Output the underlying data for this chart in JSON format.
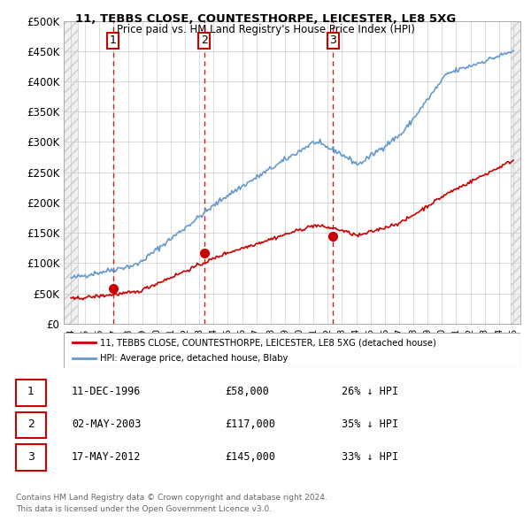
{
  "title1": "11, TEBBS CLOSE, COUNTESTHORPE, LEICESTER, LE8 5XG",
  "title2": "Price paid vs. HM Land Registry's House Price Index (HPI)",
  "xlabel": "",
  "ylabel": "",
  "ylim": [
    0,
    500000
  ],
  "yticks": [
    0,
    50000,
    100000,
    150000,
    200000,
    250000,
    300000,
    350000,
    400000,
    450000,
    500000
  ],
  "ytick_labels": [
    "£0",
    "£50K",
    "£100K",
    "£150K",
    "£200K",
    "£250K",
    "£300K",
    "£350K",
    "£400K",
    "£450K",
    "£500K"
  ],
  "hpi_color": "#6699cc",
  "price_color": "#cc0000",
  "vline_color": "#cc0000",
  "sale_points": [
    {
      "year": 1996.95,
      "price": 58000,
      "label": "1"
    },
    {
      "year": 2003.34,
      "price": 117000,
      "label": "2"
    },
    {
      "year": 2012.38,
      "price": 145000,
      "label": "3"
    }
  ],
  "legend_line1": "11, TEBBS CLOSE, COUNTESTHORPE, LEICESTER, LE8 5XG (detached house)",
  "legend_line2": "HPI: Average price, detached house, Blaby",
  "table_rows": [
    {
      "num": "1",
      "date": "11-DEC-1996",
      "price": "£58,000",
      "hpi": "26% ↓ HPI"
    },
    {
      "num": "2",
      "date": "02-MAY-2003",
      "price": "£117,000",
      "hpi": "35% ↓ HPI"
    },
    {
      "num": "3",
      "date": "17-MAY-2012",
      "price": "£145,000",
      "hpi": "33% ↓ HPI"
    }
  ],
  "footnote1": "Contains HM Land Registry data © Crown copyright and database right 2024.",
  "footnote2": "This data is licensed under the Open Government Licence v3.0.",
  "xlim_start": 1993.5,
  "xlim_end": 2025.5,
  "hatch_color": "#dddddd",
  "background_color": "#ffffff"
}
